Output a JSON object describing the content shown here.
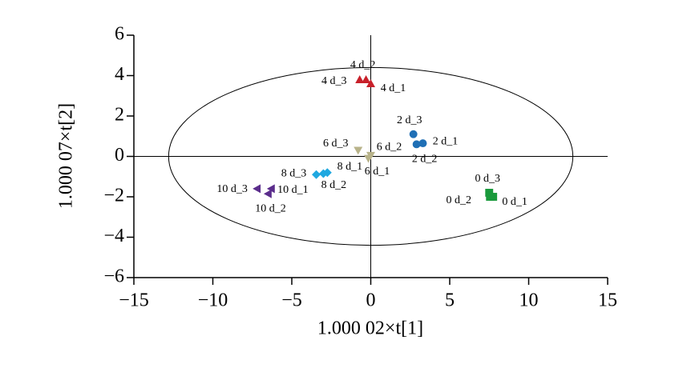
{
  "chart_data": {
    "type": "scatter",
    "xlabel": "1.000 02×t[1]",
    "ylabel": "1.000 07×t[2]",
    "xlim": [
      -15,
      15
    ],
    "ylim": [
      -6,
      6
    ],
    "xticks": [
      {
        "value": -15,
        "label": "−15"
      },
      {
        "value": -10,
        "label": "−10"
      },
      {
        "value": -5,
        "label": "−5"
      },
      0,
      5,
      10,
      15
    ],
    "yticks": [
      {
        "value": -6,
        "label": "−6"
      },
      {
        "value": -4,
        "label": "−4"
      },
      {
        "value": -2,
        "label": "−2"
      },
      0,
      2,
      4,
      6
    ],
    "ellipse": {
      "rx": 12.8,
      "ry": 4.4
    },
    "series": [
      {
        "marker": "triangle-up",
        "color": "#c8202a",
        "labels": [
          "4 d_1",
          "4 d_2",
          "4 d_3"
        ],
        "x": [
          0.0,
          -0.3,
          -0.7
        ],
        "y": [
          3.6,
          3.8,
          3.8
        ]
      },
      {
        "marker": "circle",
        "color": "#1f6fb5",
        "labels": [
          "2 d_1",
          "2 d_2",
          "2 d_3"
        ],
        "x": [
          3.3,
          2.9,
          2.7
        ],
        "y": [
          0.65,
          0.6,
          1.1
        ]
      },
      {
        "marker": "triangle-down",
        "color": "#b8b38a",
        "labels": [
          "6 d_1",
          "6 d_2",
          "6 d_3"
        ],
        "x": [
          -0.15,
          0.0,
          -0.8
        ],
        "y": [
          -0.1,
          0.05,
          0.3
        ]
      },
      {
        "marker": "diamond",
        "color": "#1fa8e0",
        "labels": [
          "8 d_1",
          "8 d_2",
          "8 d_3"
        ],
        "x": [
          -2.75,
          -3.0,
          -3.45
        ],
        "y": [
          -0.8,
          -0.85,
          -0.9
        ]
      },
      {
        "marker": "triangle-left",
        "color": "#5b2d8c",
        "labels": [
          "10 d_1",
          "10 d_2",
          "10 d_3"
        ],
        "x": [
          -6.3,
          -6.5,
          -7.2
        ],
        "y": [
          -1.6,
          -1.85,
          -1.6
        ]
      },
      {
        "marker": "square",
        "color": "#1a9a3c",
        "labels": [
          "0 d_1",
          "0 d_2",
          "0 d_3"
        ],
        "x": [
          7.75,
          7.55,
          7.5
        ],
        "y": [
          -2.0,
          -2.0,
          -1.8
        ]
      }
    ]
  }
}
